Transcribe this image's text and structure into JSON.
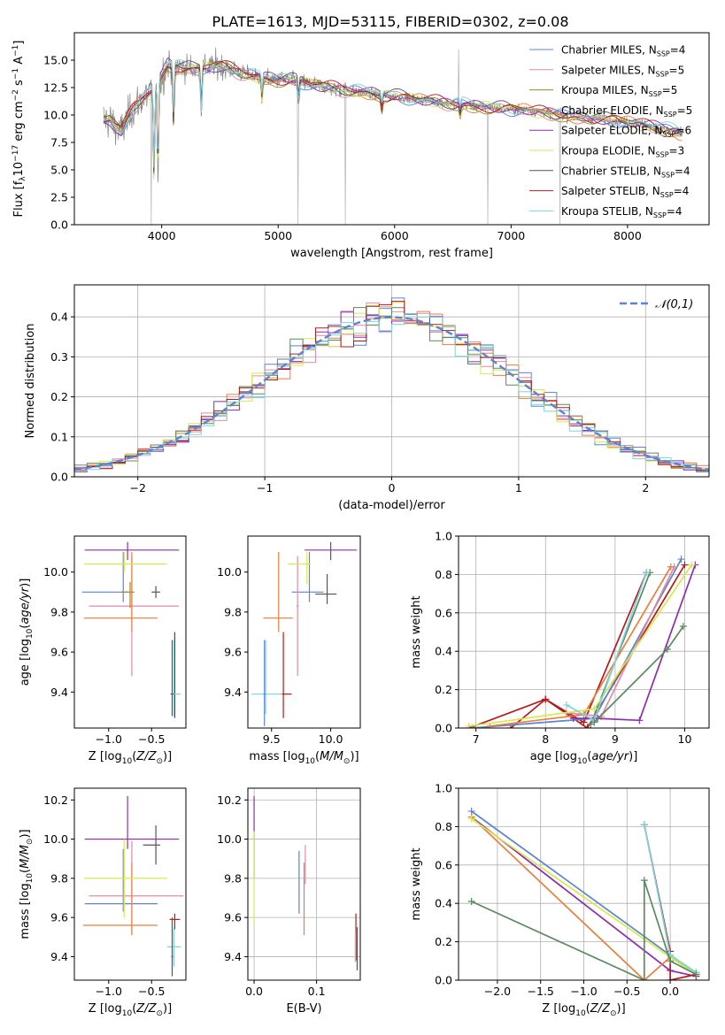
{
  "figure_title": "PLATE=1613, MJD=53115, FIBERID=0302, z=0.08",
  "series": [
    {
      "key": "chab_miles",
      "label": "Chabrier MILES, N",
      "sub": "SSP",
      "suffix": "=4",
      "color": "#5b84d4"
    },
    {
      "key": "salp_miles",
      "label": "Salpeter MILES, N",
      "sub": "SSP",
      "suffix": "=5",
      "color": "#e08aa6"
    },
    {
      "key": "krou_miles",
      "label": "Kroupa MILES, N",
      "sub": "SSP",
      "suffix": "=5",
      "color": "#9b8a2c"
    },
    {
      "key": "chab_elodie",
      "label": "Chabrier ELODIE, N",
      "sub": "SSP",
      "suffix": "=5",
      "color": "#ec7d3a"
    },
    {
      "key": "salp_elodie",
      "label": "Salpeter ELODIE, N",
      "sub": "SSP",
      "suffix": "=6",
      "color": "#8f2bb0"
    },
    {
      "key": "krou_elodie",
      "label": "Kroupa ELODIE, N",
      "sub": "SSP",
      "suffix": "=3",
      "color": "#d6ea4a"
    },
    {
      "key": "chab_stelib",
      "label": "Chabrier STELIB, N",
      "sub": "SSP",
      "suffix": "=4",
      "color": "#555555"
    },
    {
      "key": "salp_stelib",
      "label": "Salpeter STELIB, N",
      "sub": "SSP",
      "suffix": "=4",
      "color": "#b81818"
    },
    {
      "key": "krou_stelib",
      "label": "Kroupa STELIB, N",
      "sub": "SSP",
      "suffix": "=4",
      "color": "#7fd3dc"
    }
  ],
  "accent_colors": {
    "miles_chab": "#5b84d4",
    "elodie_chab": "#ec7d3a",
    "stelib_krou": "#7fd3dc",
    "green": "#5a8a5f",
    "purple": "#8f2bb0",
    "yellow": "#d6ea4a",
    "red": "#b81818",
    "data": "#808080"
  },
  "chart_data": [
    {
      "type": "line",
      "xlabel": "wavelength [Angstrom, rest frame]",
      "ylabel": "Flux [f_λ 10^-17 erg cm^-2 s^-1 A^-1]",
      "xlim": [
        3250,
        8700
      ],
      "ylim": [
        0,
        17.5
      ],
      "xticks": [
        4000,
        5000,
        6000,
        7000,
        8000
      ],
      "yticks": [
        0.0,
        2.5,
        5.0,
        7.5,
        10.0,
        12.5,
        15.0
      ],
      "legend": "upper right",
      "spectrum_nodes": {
        "x": [
          3550,
          3650,
          3750,
          3850,
          3950,
          4050,
          4150,
          4300,
          4500,
          4700,
          4900,
          5100,
          5300,
          5500,
          5700,
          5900,
          6100,
          6300,
          6500,
          6700,
          6900,
          7100,
          7300,
          7500,
          7700,
          7900,
          8100,
          8300,
          8450
        ],
        "y": [
          9.6,
          8.4,
          10.6,
          11.7,
          12.3,
          14.6,
          14.4,
          14.2,
          14.5,
          13.8,
          13.3,
          13.2,
          12.8,
          12.4,
          12.1,
          11.8,
          11.6,
          11.3,
          11.0,
          10.8,
          10.6,
          10.5,
          10.2,
          9.9,
          9.7,
          9.5,
          9.2,
          8.8,
          8.3
        ]
      },
      "absorption_features": [
        [
          3934,
          4.2
        ],
        [
          3968,
          4.8
        ],
        [
          4102,
          9.5
        ],
        [
          4340,
          10.5
        ],
        [
          4861,
          11.5
        ],
        [
          5175,
          11.3
        ],
        [
          5890,
          10.7
        ],
        [
          6563,
          10.1
        ]
      ],
      "spikes": [
        [
          3910,
          0.0
        ],
        [
          5170,
          0.0
        ],
        [
          5577,
          0.0
        ],
        [
          6550,
          16.0
        ],
        [
          6800,
          0.0
        ],
        [
          7420,
          0.0
        ]
      ]
    },
    {
      "type": "bar",
      "subtype": "step-histogram",
      "xlabel": "(data-model)/error",
      "ylabel": "Normed distribution",
      "xlim": [
        -2.5,
        2.5
      ],
      "ylim": [
        0,
        0.48
      ],
      "xticks": [
        -2,
        -1,
        0,
        1,
        2
      ],
      "yticks": [
        0.0,
        0.1,
        0.2,
        0.3,
        0.4
      ],
      "grid": true,
      "legend": "upper right",
      "reference_curve": {
        "name": "𝒩(0,1)",
        "mu": 0,
        "sigma": 1
      },
      "bins": {
        "start": -2.5,
        "width": 0.1,
        "count": 50
      }
    },
    {
      "type": "scatter",
      "xlabel": "Z [log10(Z/Z⊙)]",
      "ylabel": "age [log10(age/yr)]",
      "xlim": [
        -1.4,
        -0.1
      ],
      "ylim": [
        9.22,
        10.18
      ],
      "xticks": [
        -1.0,
        -0.5
      ],
      "yticks": [
        9.4,
        9.6,
        9.8,
        10.0
      ],
      "points": [
        {
          "k": "chab_miles",
          "x": -0.83,
          "xe": [
            0.48,
            0.05
          ],
          "y": 9.9,
          "ye": [
            0.05,
            0.2
          ]
        },
        {
          "k": "salp_miles",
          "x": -0.73,
          "xe": [
            0.5,
            0.55
          ],
          "y": 9.83,
          "ye": [
            0.35,
            0.25
          ]
        },
        {
          "k": "krou_miles",
          "x": -0.75,
          "xe": [
            0.1,
            0.05
          ],
          "y": 9.9,
          "ye": [
            0.08,
            0.05
          ]
        },
        {
          "k": "chab_elodie",
          "x": -0.73,
          "xe": [
            0.56,
            0.3
          ],
          "y": 9.77,
          "ye": [
            0.07,
            0.33
          ]
        },
        {
          "k": "salp_elodie",
          "x": -0.78,
          "xe": [
            0.5,
            0.6
          ],
          "y": 10.11,
          "ye": [
            0.05,
            0.04
          ]
        },
        {
          "k": "krou_elodie",
          "x": -0.82,
          "xe": [
            0.47,
            0.5
          ],
          "y": 10.04,
          "ye": [
            0.04,
            0.06
          ]
        },
        {
          "k": "chab_stelib",
          "x": -0.45,
          "xe": [
            0.05,
            0.05
          ],
          "y": 9.9,
          "ye": [
            0.03,
            0.03
          ]
        },
        {
          "k": "salp_stelib",
          "x": -0.23,
          "xe": [
            0.02,
            0.02
          ],
          "y": 9.39,
          "ye": [
            0.12,
            0.31
          ]
        },
        {
          "k": "krou_stelib",
          "x": -0.24,
          "xe": [
            0.03,
            0.08
          ],
          "y": 9.39,
          "ye": [
            0.11,
            0.27
          ]
        },
        {
          "k": "chab_stelib",
          "x": -0.26,
          "xe": [
            0.02,
            0.02
          ],
          "y": 9.39,
          "ye": [
            0.11,
            0.27
          ]
        }
      ]
    },
    {
      "type": "scatter",
      "xlabel": "mass [log10(M/M⊙)]",
      "ylabel": "",
      "xlim": [
        9.3,
        10.25
      ],
      "ylim": [
        9.22,
        10.18
      ],
      "xticks": [
        9.5,
        10.0
      ],
      "yticks": [
        9.4,
        9.6,
        9.8,
        10.0
      ],
      "points": [
        {
          "k": "chab_miles",
          "x": 9.82,
          "xe": [
            0.15,
            0.12
          ],
          "y": 9.9,
          "ye": [
            0.05,
            0.2
          ]
        },
        {
          "k": "salp_miles",
          "x": 9.72,
          "xe": [
            0.01,
            0.01
          ],
          "y": 9.83,
          "ye": [
            0.35,
            0.25
          ]
        },
        {
          "k": "chab_elodie",
          "x": 9.56,
          "xe": [
            0.13,
            0.12
          ],
          "y": 9.77,
          "ye": [
            0.07,
            0.33
          ]
        },
        {
          "k": "salp_elodie",
          "x": 10.0,
          "xe": [
            0.22,
            0.22
          ],
          "y": 10.11,
          "ye": [
            0.05,
            0.04
          ]
        },
        {
          "k": "krou_elodie",
          "x": 9.8,
          "xe": [
            0.16,
            0.03
          ],
          "y": 10.04,
          "ye": [
            0.1,
            0.06
          ]
        },
        {
          "k": "chab_stelib",
          "x": 9.97,
          "xe": [
            0.1,
            0.08
          ],
          "y": 9.89,
          "ye": [
            0.05,
            0.1
          ]
        },
        {
          "k": "salp_stelib",
          "x": 9.6,
          "xe": [
            0.03,
            0.07
          ],
          "y": 9.39,
          "ye": [
            0.12,
            0.31
          ]
        },
        {
          "k": "krou_stelib",
          "x": 9.45,
          "xe": [
            0.12,
            0.14
          ],
          "y": 9.39,
          "ye": [
            0.1,
            0.27
          ]
        },
        {
          "k": "chab_miles",
          "x": 9.44,
          "xe": [
            0.01,
            0.01
          ],
          "y": 9.39,
          "ye": [
            0.16,
            0.27
          ]
        }
      ]
    },
    {
      "type": "line",
      "xlabel": "age  [log10(age/yr)]",
      "ylabel": "mass weight",
      "xlim": [
        6.75,
        10.35
      ],
      "ylim": [
        0.0,
        1.0
      ],
      "xticks": [
        7,
        8,
        9,
        10
      ],
      "yticks": [
        0.0,
        0.2,
        0.4,
        0.6,
        0.8,
        1.0
      ],
      "grid": true,
      "lines": [
        {
          "k": "salp_stelib",
          "x": [
            7.5,
            8.0,
            8.55,
            9.45
          ],
          "y": [
            0.0,
            0.15,
            0.03,
            0.81
          ]
        },
        {
          "k": "salp_stelib",
          "x": [
            6.9,
            8.0,
            8.6,
            10.0
          ],
          "y": [
            0.0,
            0.15,
            0.0,
            0.85
          ]
        },
        {
          "k": "chab_stelib",
          "x": [
            8.65,
            9.5
          ],
          "y": [
            0.02,
            0.81
          ]
        },
        {
          "k": "chab_miles",
          "x": [
            6.95,
            8.7,
            9.95
          ],
          "y": [
            0.0,
            0.05,
            0.88
          ]
        },
        {
          "k": "salp_miles",
          "x": [
            8.3,
            8.8,
            9.85
          ],
          "y": [
            0.08,
            0.06,
            0.84
          ]
        },
        {
          "k": "chab_elodie",
          "x": [
            7.2,
            8.55,
            9.8
          ],
          "y": [
            0.01,
            0.07,
            0.84
          ]
        },
        {
          "k": "salp_elodie",
          "x": [
            8.4,
            8.75,
            9.35,
            10.15
          ],
          "y": [
            0.05,
            0.05,
            0.04,
            0.85
          ]
        },
        {
          "k": "krou_elodie",
          "x": [
            6.9,
            8.7,
            10.1
          ],
          "y": [
            0.01,
            0.1,
            0.85
          ]
        },
        {
          "k": "krou_stelib",
          "x": [
            8.3,
            8.7,
            9.45
          ],
          "y": [
            0.12,
            0.04,
            0.81
          ]
        },
        {
          "k": "chab_stelib",
          "x": [
            8.7,
            9.75,
            9.98
          ],
          "y": [
            0.03,
            0.41,
            0.53
          ]
        }
      ]
    },
    {
      "type": "scatter",
      "xlabel": "Z [log10(Z/Z⊙)]",
      "ylabel": "mass [log10(M/M⊙)]",
      "xlim": [
        -1.4,
        -0.1
      ],
      "ylim": [
        9.28,
        10.26
      ],
      "xticks": [
        -1.0,
        -0.5
      ],
      "yticks": [
        9.4,
        9.6,
        9.8,
        10.0,
        10.2
      ],
      "points": [
        {
          "k": "chab_miles",
          "x": -0.83,
          "xe": [
            0.45,
            0.4
          ],
          "y": 9.67,
          "ye": [
            0.04,
            0.28
          ]
        },
        {
          "k": "salp_miles",
          "x": -0.73,
          "xe": [
            0.5,
            0.6
          ],
          "y": 9.71,
          "ye": [
            0.2,
            0.28
          ]
        },
        {
          "k": "chab_elodie",
          "x": -0.73,
          "xe": [
            0.57,
            0.3
          ],
          "y": 9.56,
          "ye": [
            0.05,
            0.32
          ]
        },
        {
          "k": "salp_elodie",
          "x": -0.78,
          "xe": [
            0.5,
            0.6
          ],
          "y": 10.0,
          "ye": [
            0.05,
            0.22
          ]
        },
        {
          "k": "krou_elodie",
          "x": -0.82,
          "xe": [
            0.47,
            0.5
          ],
          "y": 9.8,
          "ye": [
            0.2,
            0.2
          ]
        },
        {
          "k": "chab_stelib",
          "x": -0.45,
          "xe": [
            0.15,
            0.05
          ],
          "y": 9.97,
          "ye": [
            0.1,
            0.1
          ]
        },
        {
          "k": "salp_stelib",
          "x": -0.23,
          "xe": [
            0.06,
            0.06
          ],
          "y": 9.59,
          "ye": [
            0.05,
            0.03
          ]
        },
        {
          "k": "krou_stelib",
          "x": -0.24,
          "xe": [
            0.08,
            0.08
          ],
          "y": 9.45,
          "ye": [
            0.1,
            0.1
          ]
        },
        {
          "k": "chab_stelib",
          "x": -0.26,
          "xe": [
            0.01,
            0.01
          ],
          "y": 9.4,
          "ye": [
            0.1,
            0.2
          ]
        }
      ]
    },
    {
      "type": "scatter",
      "xlabel": "E(B-V)",
      "ylabel": "",
      "xlim": [
        -0.01,
        0.17
      ],
      "ylim": [
        9.28,
        10.26
      ],
      "xticks": [
        0.0,
        0.1
      ],
      "yticks": [
        9.4,
        9.6,
        9.8,
        10.0,
        10.2
      ],
      "grid": true,
      "points": [
        {
          "k": "salp_elodie",
          "x": 0.0,
          "xe": [
            0,
            0
          ],
          "y": 10.1,
          "ye": [
            0.3,
            0.12
          ]
        },
        {
          "k": "krou_elodie",
          "x": 0.0,
          "xe": [
            0,
            0
          ],
          "y": 9.8,
          "ye": [
            0.24,
            0.24
          ]
        },
        {
          "k": "chab_miles",
          "x": 0.072,
          "xe": [
            0,
            0
          ],
          "y": 9.78,
          "ye": [
            0.16,
            0.16
          ]
        },
        {
          "k": "chab_elodie",
          "x": 0.08,
          "xe": [
            0,
            0
          ],
          "y": 9.68,
          "ye": [
            0.17,
            0.2
          ]
        },
        {
          "k": "salp_miles",
          "x": 0.082,
          "xe": [
            0,
            0
          ],
          "y": 9.87,
          "ye": [
            0.1,
            0.1
          ]
        },
        {
          "k": "salp_stelib",
          "x": 0.163,
          "xe": [
            0,
            0
          ],
          "y": 9.5,
          "ye": [
            0.12,
            0.12
          ]
        },
        {
          "k": "chab_stelib",
          "x": 0.165,
          "xe": [
            0,
            0
          ],
          "y": 9.43,
          "ye": [
            0.1,
            0.12
          ]
        },
        {
          "k": "krou_stelib",
          "x": 0.162,
          "xe": [
            0,
            0
          ],
          "y": 9.45,
          "ye": [
            0.08,
            0.08
          ]
        }
      ]
    },
    {
      "type": "line",
      "xlabel": "Z [log10(Z/Z⊙)]",
      "ylabel": "mass weight",
      "xlim": [
        -2.45,
        0.45
      ],
      "ylim": [
        0.0,
        1.0
      ],
      "xticks": [
        -2.0,
        -1.5,
        -1.0,
        -0.5,
        0.0
      ],
      "yticks": [
        0.0,
        0.2,
        0.4,
        0.6,
        0.8,
        1.0
      ],
      "grid": true,
      "lines": [
        {
          "k": "chab_miles",
          "x": [
            -2.3,
            0.0,
            0.3
          ],
          "y": [
            0.88,
            0.13,
            0.04
          ]
        },
        {
          "k": "salp_elodie",
          "x": [
            -2.3,
            0.0,
            0.3
          ],
          "y": [
            0.85,
            0.05,
            0.02
          ]
        },
        {
          "k": "chab_elodie",
          "x": [
            -2.3,
            -0.3,
            0.0,
            0.3
          ],
          "y": [
            0.85,
            0.0,
            0.12,
            0.03
          ]
        },
        {
          "k": "krou_elodie",
          "x": [
            -2.3,
            0.0,
            0.3
          ],
          "y": [
            0.84,
            0.12,
            0.03
          ]
        },
        {
          "k": "salp_stelib",
          "x": [
            -0.3,
            0.0,
            0.0,
            0.3
          ],
          "y": [
            0.81,
            0.15,
            0.0,
            0.03
          ]
        },
        {
          "k": "krou_stelib",
          "x": [
            -0.3,
            0.0,
            0.3
          ],
          "y": [
            0.81,
            0.13,
            0.04
          ]
        },
        {
          "k": "chab_stelib",
          "x": [
            -2.3,
            -0.3,
            -0.3,
            0.0,
            0.3
          ],
          "y": [
            0.41,
            0.0,
            0.52,
            0.1,
            0.03
          ]
        }
      ]
    }
  ]
}
